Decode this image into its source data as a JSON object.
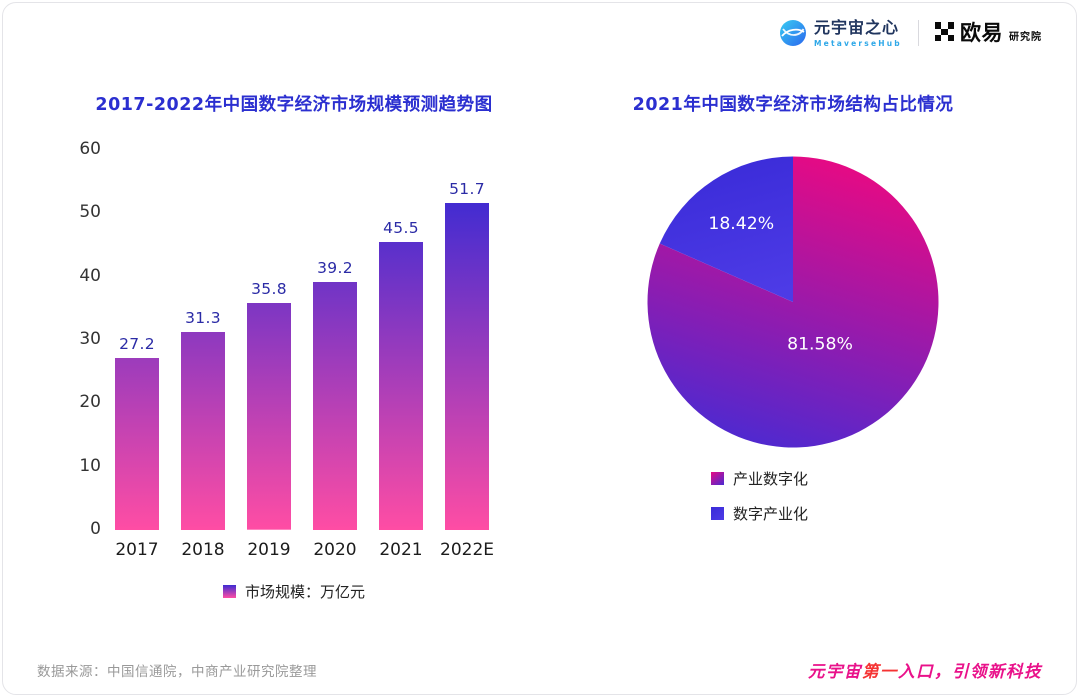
{
  "header": {
    "brand_left": {
      "name": "元宇宙之心",
      "subtitle": "MetaverseHub"
    },
    "brand_right": {
      "name": "欧易",
      "subtitle": "研究院"
    }
  },
  "chart_data": [
    {
      "type": "bar",
      "title": "2017-2022年中国数字经济市场规模预测趋势图",
      "categories": [
        "2017",
        "2018",
        "2019",
        "2020",
        "2021",
        "2022E"
      ],
      "values": [
        27.2,
        31.3,
        35.8,
        39.2,
        45.5,
        51.7
      ],
      "ylim": [
        0,
        60
      ],
      "yticks": [
        0,
        10,
        20,
        30,
        40,
        50,
        60
      ],
      "grid": false,
      "legend_position": "bottom",
      "legend_label": "市场规模：万亿元"
    },
    {
      "type": "pie",
      "title": "2021年中国数字经济市场结构占比情况",
      "slices": [
        {
          "label": "产业数字化",
          "value": 81.58,
          "display": "81.58%",
          "label_radius": 0.34
        },
        {
          "label": "数字产业化",
          "value": 18.42,
          "display": "18.42%",
          "label_radius": 0.65
        }
      ],
      "legend_position": "bottom"
    }
  ],
  "footer": {
    "source": "数据来源：中国信通院，中商产业研究院整理",
    "slogan": {
      "pre": "元宇宙",
      "highlight": "第一",
      "post": "入口，引领新科技"
    }
  },
  "colors": {
    "title_blue": "#2b2fd0",
    "bar_gradient_top": "#3e2bd2",
    "bar_gradient_bottom": "#ff4da4",
    "bar_value_label": "#2b2ba6",
    "axis_text": "#333333",
    "pie_main_start": "#e60a84",
    "pie_main_end": "#4a2ad2",
    "pie_secondary_start": "#3a2bd8",
    "pie_secondary_end": "#4d3be6",
    "slogan_pink": "#e9118a",
    "slogan_red": "#f53333",
    "source_gray": "#999999",
    "logo_gradient_start": "#38cdf2",
    "logo_gradient_end": "#2a66ee",
    "brand_text": "#20355e"
  }
}
